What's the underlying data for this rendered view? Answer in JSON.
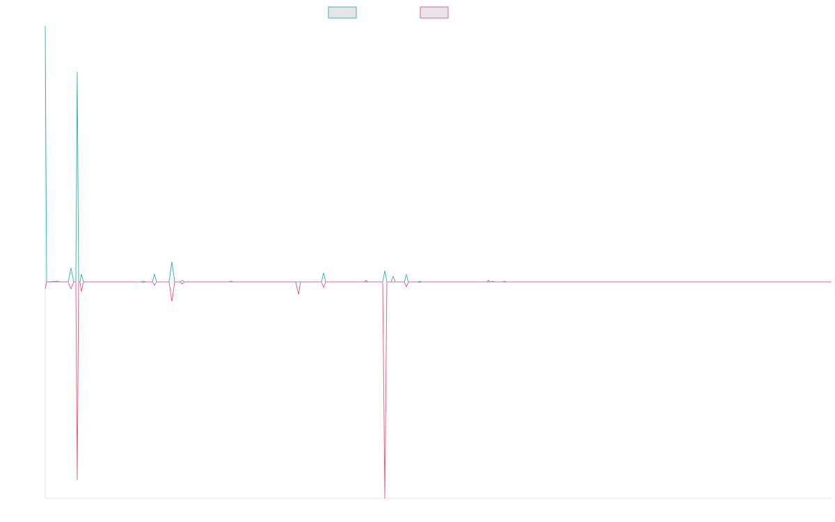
{
  "chart_data": {
    "type": "line",
    "xlim": [
      0,
      1130
    ],
    "ylim": [
      -311,
      368
    ],
    "series": [
      {
        "color": "#36b9b9",
        "x": [
          0,
          2,
          18,
          20,
          33,
          37,
          41,
          44,
          46,
          48,
          50,
          52,
          55,
          138,
          141,
          144,
          154,
          157,
          160,
          178,
          182,
          186,
          194,
          197,
          200,
          264,
          267,
          270,
          397,
          400,
          403,
          458,
          461,
          464,
          485,
          488,
          491,
          497,
          500,
          503,
          516,
          519,
          522,
          535,
          538,
          541,
          634,
          637,
          640,
          643,
          646,
          657,
          660,
          663,
          1130
        ],
        "values": [
          368,
          0,
          1,
          0,
          0,
          20,
          0,
          0,
          302,
          0,
          0,
          11,
          0,
          0,
          1,
          0,
          0,
          11,
          0,
          0,
          29,
          0,
          0,
          2,
          0,
          0,
          1,
          0,
          0,
          13,
          0,
          0,
          2,
          0,
          0,
          16,
          0,
          0,
          8,
          0,
          0,
          10,
          0,
          0,
          1,
          0,
          0,
          2,
          0,
          1,
          0,
          0,
          1,
          0,
          0
        ]
      },
      {
        "color": "#f0607e",
        "x": [
          0,
          2,
          33,
          37,
          41,
          44,
          46,
          48,
          50,
          52,
          55,
          138,
          141,
          144,
          154,
          157,
          160,
          178,
          182,
          186,
          194,
          197,
          200,
          360,
          364,
          367,
          397,
          400,
          403,
          485,
          488,
          491,
          516,
          519,
          522,
          535,
          538,
          541,
          1130
        ],
        "values": [
          -10,
          0,
          0,
          -10,
          0,
          0,
          -285,
          0,
          0,
          -14,
          0,
          0,
          -1,
          0,
          0,
          -5,
          0,
          0,
          -28,
          0,
          0,
          -3,
          0,
          0,
          -18,
          0,
          0,
          -8,
          0,
          0,
          -311,
          0,
          0,
          -7,
          0,
          0,
          -1,
          0,
          0
        ]
      }
    ]
  }
}
